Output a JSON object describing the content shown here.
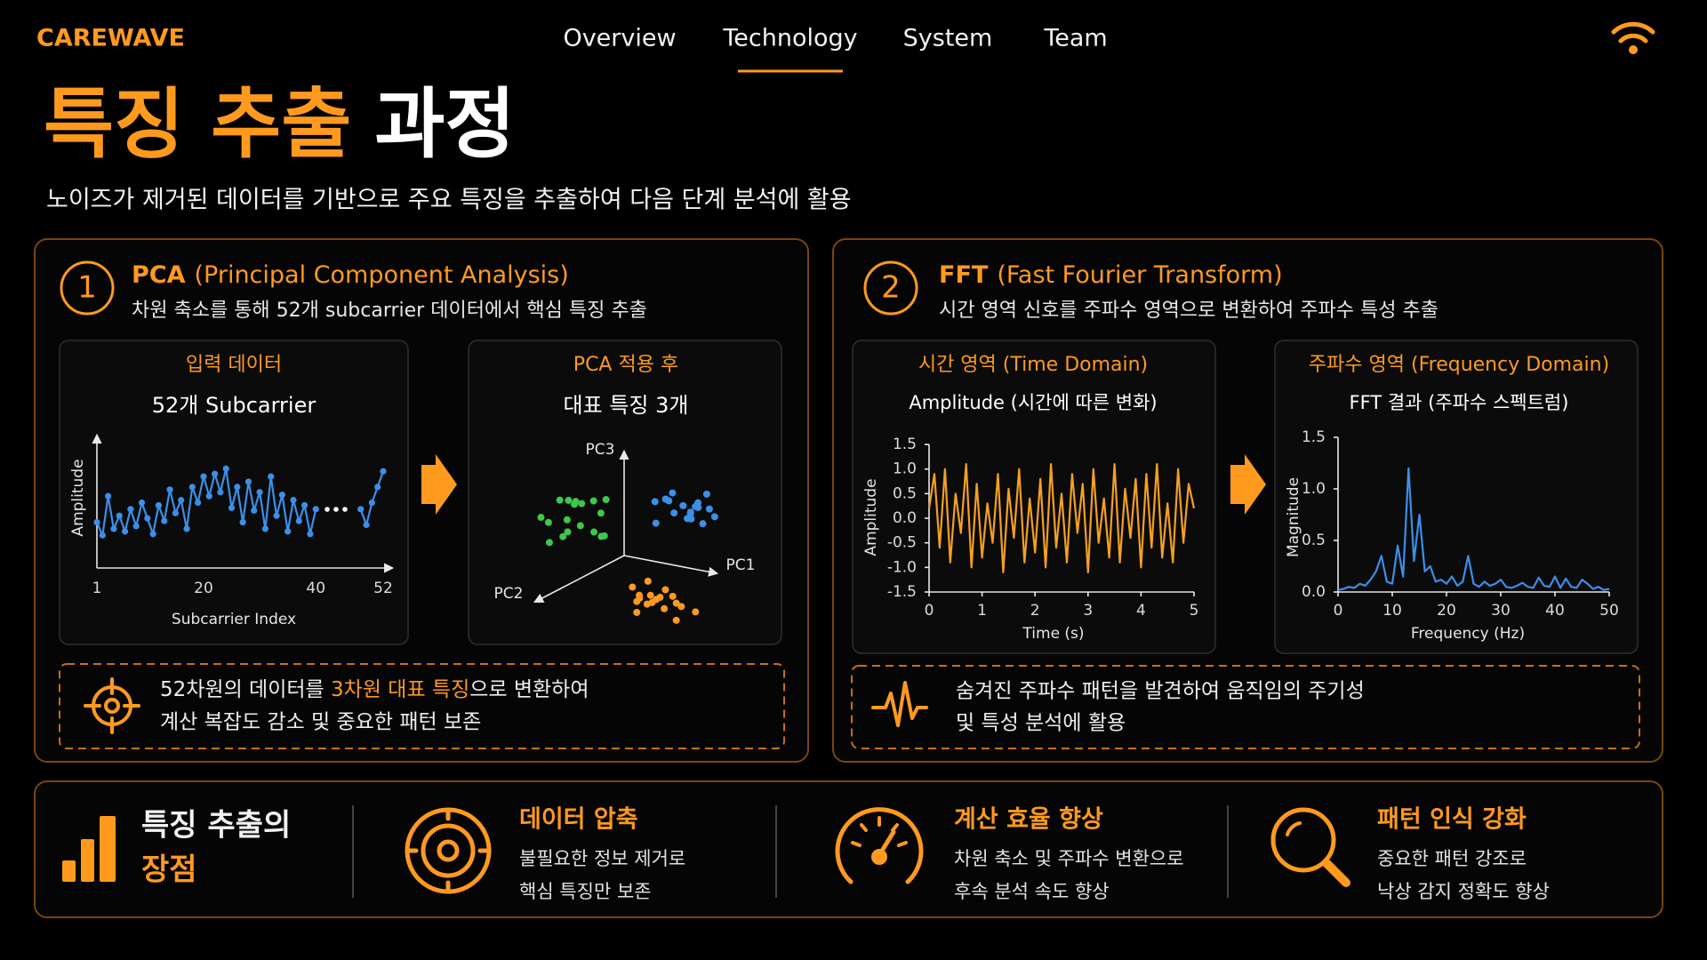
{
  "header": {
    "brand": "CAREWAVE",
    "nav": [
      {
        "label": "Overview",
        "active": false
      },
      {
        "label": "Technology",
        "active": true
      },
      {
        "label": "System",
        "active": false
      },
      {
        "label": "Team",
        "active": false
      }
    ]
  },
  "hero": {
    "title_accent": "특징 추출",
    "title_rest": "과정",
    "subtitle": "노이즈가 제거된 데이터를 기반으로 주요 특징을 추출하여 다음 단계 분석에 활용"
  },
  "pca": {
    "badge": "1",
    "title_abbr": "PCA",
    "title_full": "(Principal Component Analysis)",
    "description": "차원 축소를 통해 52개 subcarrier 데이터에서 핵심 특징 추출",
    "input": {
      "heading": "입력 데이터",
      "subheading": "52개 Subcarrier",
      "chart": {
        "type": "line",
        "xlabel": "Subcarrier Index",
        "ylabel": "Amplitude",
        "color": "#3b8fe8",
        "markers": true,
        "x": [
          1,
          2,
          3,
          4,
          5,
          6,
          7,
          8,
          9,
          10,
          11,
          12,
          13,
          14,
          15,
          16,
          17,
          18,
          19,
          20,
          21,
          22,
          23,
          24,
          25,
          26,
          27,
          28,
          29,
          30,
          31,
          32,
          33,
          34,
          35,
          36,
          37,
          38,
          39,
          40,
          41,
          42,
          43,
          44,
          45,
          46,
          47,
          48,
          49,
          50,
          51,
          52
        ],
        "values": [
          0.35,
          0.25,
          0.55,
          0.3,
          0.4,
          0.28,
          0.45,
          0.32,
          0.5,
          0.38,
          0.26,
          0.48,
          0.36,
          0.6,
          0.42,
          0.52,
          0.3,
          0.62,
          0.5,
          0.7,
          0.55,
          0.72,
          0.58,
          0.76,
          0.46,
          0.62,
          0.35,
          0.66,
          0.44,
          0.58,
          0.3,
          0.7,
          0.4,
          0.56,
          0.28,
          0.52,
          0.36,
          0.48,
          0.26,
          0.45,
          null,
          null,
          null,
          null,
          null,
          null,
          null,
          0.45,
          0.33,
          0.5,
          0.62,
          0.74
        ],
        "xlim": [
          1,
          52
        ],
        "xticks": [
          1,
          20,
          40,
          52
        ],
        "ylim": [
          0,
          1
        ]
      }
    },
    "output": {
      "heading": "PCA 적용 후",
      "subheading": "대표 특징 3개",
      "chart": {
        "type": "scatter3d",
        "axis_labels": {
          "x": "PC1",
          "y": "PC2",
          "z": "PC3"
        },
        "cluster_colors": [
          "#3cc84a",
          "#3b8fe8",
          "#ff9a1f"
        ]
      }
    },
    "note": {
      "line1": [
        "52차원의 데이터를 ",
        "3차원 대표 특징",
        "으로 변환하여"
      ],
      "line2": "계산 복잡도 감소 및 중요한 패턴 보존"
    }
  },
  "fft": {
    "badge": "2",
    "title_abbr": "FFT",
    "title_full": "(Fast Fourier Transform)",
    "description": "시간 영역 신호를 주파수 영역으로 변환하여 주파수 특성 추출",
    "time": {
      "heading": "시간 영역 (Time Domain)",
      "subheading": "Amplitude (시간에 따른 변화)",
      "chart": {
        "type": "line",
        "xlabel": "Time (s)",
        "ylabel": "Amplitude",
        "color": "#f5a020",
        "markers": false,
        "x": [
          0,
          0.1,
          0.2,
          0.3,
          0.4,
          0.5,
          0.6,
          0.7,
          0.8,
          0.9,
          1,
          1.1,
          1.2,
          1.3,
          1.4,
          1.5,
          1.6,
          1.7,
          1.8,
          1.9,
          2,
          2.1,
          2.2,
          2.3,
          2.4,
          2.5,
          2.6,
          2.7,
          2.8,
          2.9,
          3,
          3.1,
          3.2,
          3.3,
          3.4,
          3.5,
          3.6,
          3.7,
          3.8,
          3.9,
          4,
          4.1,
          4.2,
          4.3,
          4.4,
          4.5,
          4.6,
          4.7,
          4.8,
          4.9,
          5
        ],
        "values": [
          0.2,
          0.9,
          -0.6,
          1.0,
          -0.9,
          0.5,
          -0.3,
          1.1,
          -1.0,
          0.7,
          -0.8,
          0.3,
          -0.5,
          0.9,
          -1.1,
          0.6,
          -0.4,
          1.0,
          -0.9,
          0.4,
          -0.7,
          0.8,
          -1.0,
          1.1,
          -0.6,
          0.5,
          -0.9,
          0.9,
          -0.3,
          0.7,
          -1.1,
          1.0,
          -0.5,
          0.4,
          -0.8,
          1.1,
          -0.9,
          0.6,
          -0.4,
          0.8,
          -1.0,
          0.9,
          -0.6,
          1.1,
          -0.8,
          0.3,
          -0.9,
          1.0,
          -0.5,
          0.7,
          0.2
        ],
        "xlim": [
          0,
          5
        ],
        "xticks": [
          0,
          1,
          2,
          3,
          4,
          5
        ],
        "ylim": [
          -1.5,
          1.5
        ],
        "yticks": [
          1.5,
          {
            "value": 1,
            "label": "1.0"
          },
          0.5,
          {
            "value": 0,
            "label": "0.0"
          },
          -0.5,
          {
            "value": -1,
            "label": "-1.0"
          },
          -1.5
        ]
      }
    },
    "frequency": {
      "heading": "주파수 영역 (Frequency Domain)",
      "subheading": "FFT 결과 (주파수 스펙트럼)",
      "chart": {
        "type": "line",
        "xlabel": "Frequency (Hz)",
        "ylabel": "Magnitude",
        "color": "#3b8fe8",
        "markers": false,
        "x": [
          0,
          1,
          2,
          3,
          4,
          5,
          6,
          7,
          8,
          9,
          10,
          11,
          12,
          13,
          14,
          15,
          16,
          17,
          18,
          19,
          20,
          21,
          22,
          23,
          24,
          25,
          26,
          27,
          28,
          29,
          30,
          31,
          32,
          33,
          34,
          35,
          36,
          37,
          38,
          39,
          40,
          41,
          42,
          43,
          44,
          45,
          46,
          47,
          48,
          49,
          50
        ],
        "values": [
          0.02,
          0.03,
          0.05,
          0.04,
          0.08,
          0.06,
          0.12,
          0.2,
          0.35,
          0.1,
          0.08,
          0.45,
          0.15,
          1.2,
          0.3,
          0.75,
          0.2,
          0.25,
          0.1,
          0.12,
          0.08,
          0.15,
          0.06,
          0.1,
          0.35,
          0.08,
          0.05,
          0.1,
          0.06,
          0.08,
          0.12,
          0.05,
          0.04,
          0.06,
          0.09,
          0.05,
          0.04,
          0.14,
          0.06,
          0.05,
          0.15,
          0.04,
          0.13,
          0.05,
          0.04,
          0.12,
          0.08,
          0.03,
          0.05,
          0.02,
          0.03
        ],
        "xlim": [
          0,
          50
        ],
        "xticks": [
          0,
          10,
          20,
          30,
          40,
          50
        ],
        "ylim": [
          0,
          1.5
        ],
        "yticks": [
          {
            "value": 0,
            "label": "0.0"
          },
          0.5,
          {
            "value": 1,
            "label": "1.0"
          },
          1.5
        ]
      }
    },
    "note": {
      "line1": "숨겨진 주파수 패턴을 발견하여 움직임의 주기성",
      "line2": "및 특성 분석에 활용"
    }
  },
  "advantages": {
    "heading_line1": "특징 추출의",
    "heading_line2": "장점",
    "items": [
      {
        "title": "데이터 압축",
        "lines": [
          "불필요한 정보 제거로",
          "핵심 특징만 보존"
        ]
      },
      {
        "title": "계산 효율 향상",
        "lines": [
          "차원 축소 및 주파수 변환으로",
          "후속 분석 속도 향상"
        ]
      },
      {
        "title": "패턴 인식 강화",
        "lines": [
          "중요한 패턴 강조로",
          "낙상 감지 정확도 향상"
        ]
      }
    ]
  }
}
